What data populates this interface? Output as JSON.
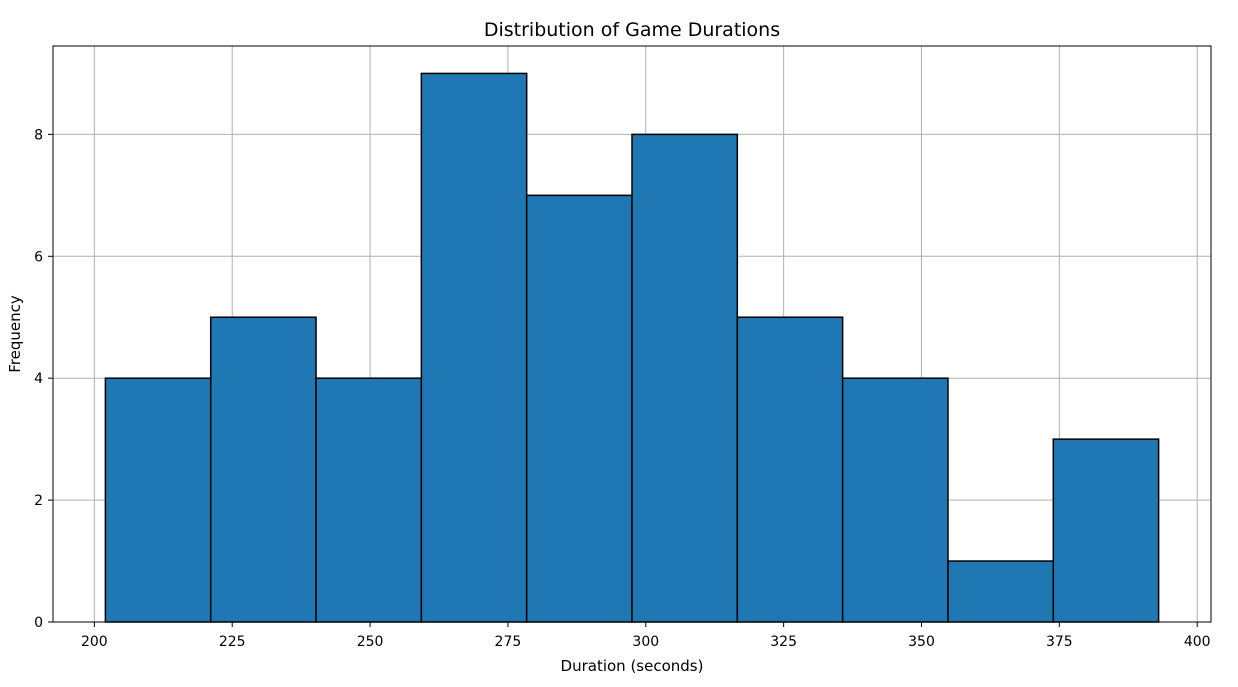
{
  "chart_data": {
    "type": "bar",
    "title": "Distribution of Game Durations",
    "xlabel": "Duration (seconds)",
    "ylabel": "Frequency",
    "bins": [
      {
        "start": 202.0,
        "end": 221.1,
        "count": 4
      },
      {
        "start": 221.1,
        "end": 240.2,
        "count": 5
      },
      {
        "start": 240.2,
        "end": 259.3,
        "count": 4
      },
      {
        "start": 259.3,
        "end": 278.4,
        "count": 9
      },
      {
        "start": 278.4,
        "end": 297.5,
        "count": 7
      },
      {
        "start": 297.5,
        "end": 316.6,
        "count": 8
      },
      {
        "start": 316.6,
        "end": 335.7,
        "count": 5
      },
      {
        "start": 335.7,
        "end": 354.8,
        "count": 4
      },
      {
        "start": 354.8,
        "end": 373.9,
        "count": 1
      },
      {
        "start": 373.9,
        "end": 393.0,
        "count": 3
      }
    ],
    "xlim": [
      192.5,
      402.5
    ],
    "ylim": [
      0,
      9.45
    ],
    "xticks": [
      200,
      225,
      250,
      275,
      300,
      325,
      350,
      375,
      400
    ],
    "yticks": [
      0,
      2,
      4,
      6,
      8
    ],
    "grid": true,
    "bar_color": "#1f77b4",
    "edge_color": "#000000",
    "grid_color": "#b0b0b0"
  }
}
